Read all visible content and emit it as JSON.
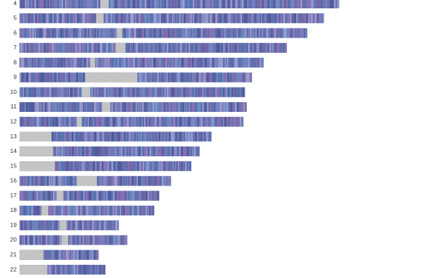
{
  "chart_data": {
    "type": "ideogram",
    "categories": [
      "4",
      "5",
      "6",
      "7",
      "8",
      "9",
      "10",
      "11",
      "12",
      "13",
      "14",
      "15",
      "16",
      "17",
      "18",
      "19",
      "20",
      "21",
      "22"
    ],
    "values": [
      190,
      181,
      171,
      159,
      145,
      138,
      134,
      135,
      133,
      114,
      107,
      102,
      90,
      83,
      80,
      59,
      64,
      47,
      51
    ],
    "gaps": [
      [
        48,
        53
      ],
      [
        45.5,
        50
      ],
      [
        58,
        61
      ],
      [
        57,
        63
      ],
      [
        42,
        45
      ],
      [
        39,
        70
      ],
      [
        37,
        42
      ],
      [
        49,
        54
      ],
      [
        34,
        37
      ],
      [
        0,
        19
      ],
      [
        0,
        20
      ],
      [
        0,
        21
      ],
      [
        34,
        46
      ],
      [
        22,
        26
      ],
      [
        13,
        17
      ],
      [
        24,
        28
      ],
      [
        25,
        29
      ],
      [
        0,
        14
      ],
      [
        0,
        16.5
      ]
    ],
    "color": "#6f76b0",
    "gap_color": "#c4c4c4"
  }
}
